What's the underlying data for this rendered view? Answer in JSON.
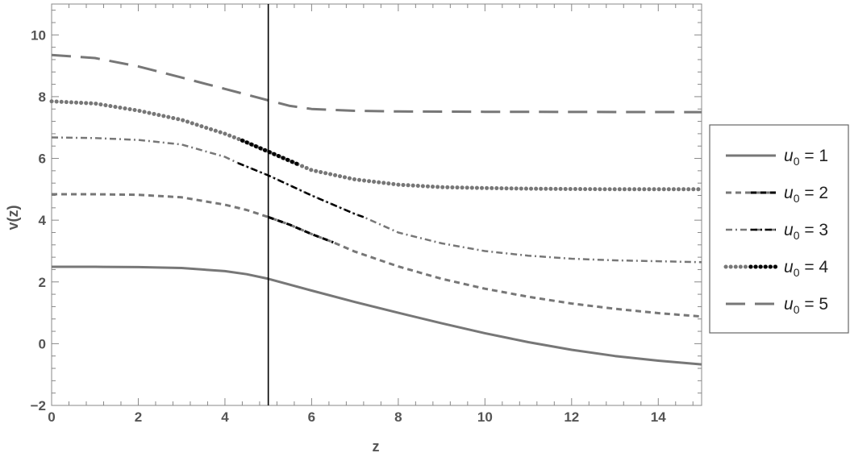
{
  "chart_data": {
    "type": "line",
    "xlabel": "z",
    "ylabel": "v(z)",
    "xlim": [
      0,
      15
    ],
    "ylim": [
      -2,
      11
    ],
    "x_ticks": [
      0,
      2,
      4,
      6,
      8,
      10,
      12,
      14
    ],
    "x_tick_labels": [
      "0",
      "2",
      "4",
      "6",
      "8",
      "10",
      "12",
      "14"
    ],
    "y_ticks": [
      -2,
      0,
      2,
      4,
      6,
      8,
      10
    ],
    "y_tick_labels": [
      "−2",
      "0",
      "2",
      "4",
      "6",
      "8",
      "10"
    ],
    "vertical_line_x": 5,
    "grid": false,
    "legend_position": "right",
    "colors": {
      "series": "#777777",
      "highlight": "#000000",
      "axis": "#888888",
      "vline": "#000000"
    },
    "series": [
      {
        "name_base": "u",
        "name_sub": "0",
        "name_suffix": " = 1",
        "style": "solid",
        "points": [
          [
            0,
            2.49
          ],
          [
            1,
            2.49
          ],
          [
            2,
            2.48
          ],
          [
            3,
            2.45
          ],
          [
            4,
            2.35
          ],
          [
            4.5,
            2.25
          ],
          [
            5,
            2.1
          ],
          [
            6,
            1.72
          ],
          [
            7,
            1.35
          ],
          [
            8,
            1.0
          ],
          [
            9,
            0.66
          ],
          [
            10,
            0.34
          ],
          [
            11,
            0.05
          ],
          [
            12,
            -0.2
          ],
          [
            13,
            -0.4
          ],
          [
            14,
            -0.55
          ],
          [
            15,
            -0.67
          ]
        ]
      },
      {
        "name_base": "u",
        "name_sub": "0",
        "name_suffix": " = 2",
        "style": "dashed",
        "highlight": [
          5,
          6.5
        ],
        "points": [
          [
            0,
            4.84
          ],
          [
            1,
            4.84
          ],
          [
            2,
            4.82
          ],
          [
            3,
            4.74
          ],
          [
            4,
            4.5
          ],
          [
            4.5,
            4.33
          ],
          [
            5,
            4.1
          ],
          [
            5.5,
            3.85
          ],
          [
            6,
            3.55
          ],
          [
            6.5,
            3.28
          ],
          [
            7,
            2.98
          ],
          [
            8,
            2.5
          ],
          [
            9,
            2.1
          ],
          [
            10,
            1.78
          ],
          [
            11,
            1.52
          ],
          [
            12,
            1.3
          ],
          [
            13,
            1.13
          ],
          [
            14,
            0.99
          ],
          [
            15,
            0.88
          ]
        ]
      },
      {
        "name_base": "u",
        "name_sub": "0",
        "name_suffix": " = 3",
        "style": "dashdot",
        "highlight": [
          4.3,
          7.2
        ],
        "points": [
          [
            0,
            6.68
          ],
          [
            1,
            6.66
          ],
          [
            2,
            6.6
          ],
          [
            3,
            6.45
          ],
          [
            4,
            6.05
          ],
          [
            4.3,
            5.85
          ],
          [
            5,
            5.45
          ],
          [
            6,
            4.8
          ],
          [
            7,
            4.2
          ],
          [
            7.2,
            4.1
          ],
          [
            8,
            3.6
          ],
          [
            9,
            3.25
          ],
          [
            10,
            3.0
          ],
          [
            11,
            2.85
          ],
          [
            12,
            2.75
          ],
          [
            13,
            2.7
          ],
          [
            14,
            2.67
          ],
          [
            15,
            2.64
          ]
        ]
      },
      {
        "name_base": "u",
        "name_sub": "0",
        "name_suffix": " = 4",
        "style": "dotted",
        "highlight": [
          4.4,
          5.7
        ],
        "points": [
          [
            0,
            7.85
          ],
          [
            1,
            7.78
          ],
          [
            2,
            7.55
          ],
          [
            3,
            7.25
          ],
          [
            4,
            6.8
          ],
          [
            4.4,
            6.58
          ],
          [
            5,
            6.22
          ],
          [
            5.7,
            5.8
          ],
          [
            6,
            5.62
          ],
          [
            7,
            5.32
          ],
          [
            8,
            5.15
          ],
          [
            9,
            5.07
          ],
          [
            10,
            5.04
          ],
          [
            11,
            5.02
          ],
          [
            12,
            5.01
          ],
          [
            13,
            5.0
          ],
          [
            14,
            5.0
          ],
          [
            15,
            5.0
          ]
        ]
      },
      {
        "name_base": "u",
        "name_sub": "0",
        "name_suffix": " = 5",
        "style": "longdash",
        "points": [
          [
            0,
            9.35
          ],
          [
            1,
            9.25
          ],
          [
            2,
            8.98
          ],
          [
            3,
            8.62
          ],
          [
            4,
            8.25
          ],
          [
            5,
            7.88
          ],
          [
            5.5,
            7.7
          ],
          [
            6,
            7.6
          ],
          [
            7,
            7.54
          ],
          [
            8,
            7.52
          ],
          [
            10,
            7.51
          ],
          [
            15,
            7.5
          ]
        ]
      }
    ]
  }
}
